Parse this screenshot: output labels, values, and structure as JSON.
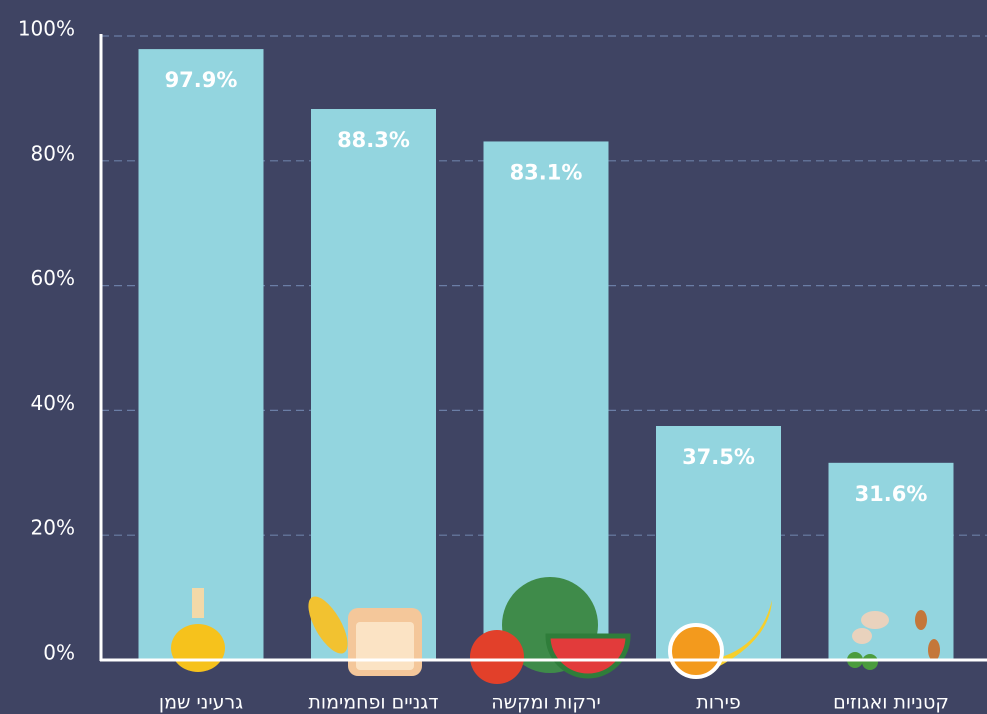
{
  "chart_data": {
    "type": "bar",
    "categories": [
      "גרעיני שמן",
      "דגניים ופחמימות",
      "ירקות ומקשה",
      "פירות",
      "קטניות ואגוזים"
    ],
    "values": [
      97.9,
      88.3,
      83.1,
      37.5,
      31.6
    ],
    "value_labels": [
      "97.9%",
      "88.3%",
      "83.1%",
      "37.5%",
      "31.6%"
    ],
    "color": "#93d5df",
    "ylim": [
      0,
      100
    ],
    "yticks": [
      {
        "value": 0,
        "label": "0%"
      },
      {
        "value": 20,
        "label": "20%"
      },
      {
        "value": 40,
        "label": "40%"
      },
      {
        "value": 60,
        "label": "60%"
      },
      {
        "value": 80,
        "label": "80%"
      },
      {
        "value": 100,
        "label": "100%"
      }
    ],
    "grid": true
  }
}
